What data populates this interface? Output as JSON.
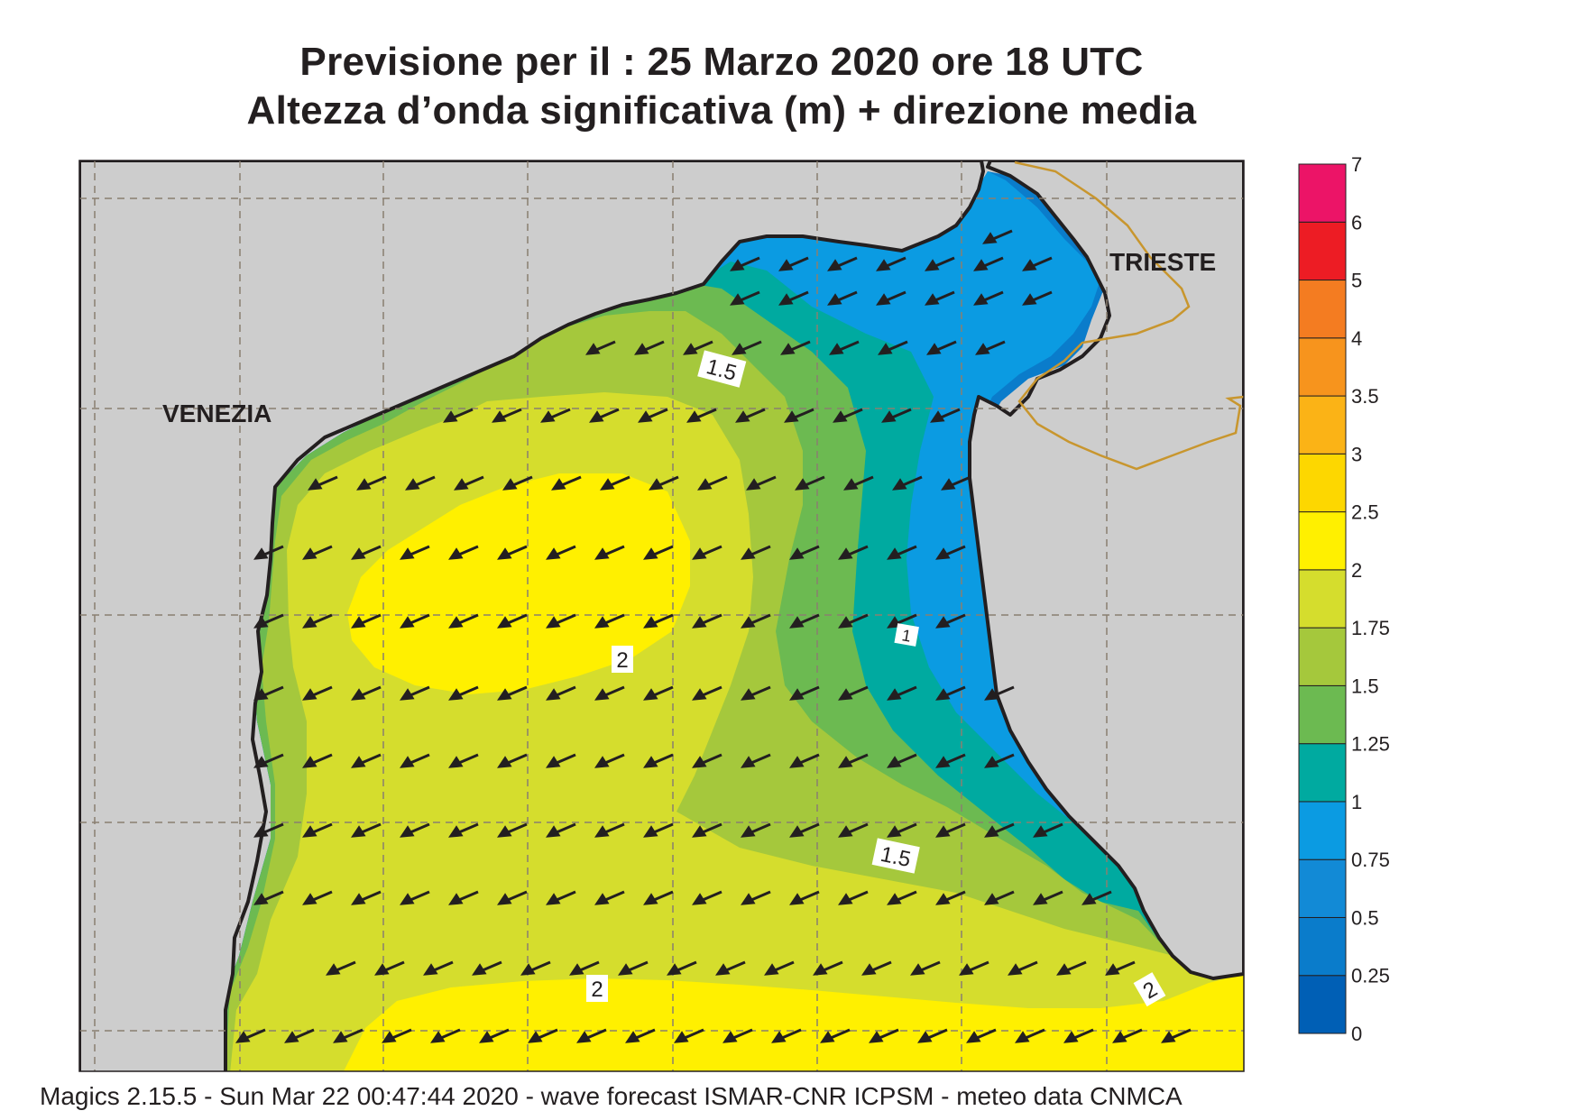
{
  "title": {
    "line1": "Previsione per il  :  25   Marzo   2020   ore 18 UTC",
    "line2": "Altezza d’onda significativa (m) + direzione media"
  },
  "places": {
    "venezia": "VENEZIA",
    "trieste": "TRIESTE"
  },
  "contour_labels": [
    {
      "id": "contour-label-1-5-north",
      "text": "1.5"
    },
    {
      "id": "contour-label-2-center",
      "text": "2"
    },
    {
      "id": "contour-label-1-east",
      "text": "1"
    },
    {
      "id": "contour-label-1-5-south",
      "text": "1.5"
    },
    {
      "id": "contour-label-2-south",
      "text": "2"
    },
    {
      "id": "contour-label-2-southeast",
      "text": "2"
    }
  ],
  "colorbar": {
    "ticks": [
      "0",
      "0.25",
      "0.5",
      "0.75",
      "1",
      "1.25",
      "1.5",
      "1.75",
      "2",
      "2.5",
      "3",
      "3.5",
      "4",
      "5",
      "6",
      "7"
    ],
    "colors": [
      "#005fb5",
      "#0a7ccb",
      "#128ad6",
      "#0b9be2",
      "#00aaa0",
      "#6cba51",
      "#a5c83c",
      "#d5dd2d",
      "#fff000",
      "#fdd700",
      "#fbb316",
      "#f7941d",
      "#f47c21",
      "#ed1c24",
      "#ec1467"
    ]
  },
  "footer": "Magics 2.15.5 - Sun Mar 22 00:47:44 2020 - wave forecast  ISMAR-CNR  ICPSM - meteo data   CNMCA",
  "style": {
    "land_color": "#cdcdcd",
    "coast_color": "#231f20",
    "border_color": "#c8962e",
    "arrow_color": "#231f20"
  },
  "wave_direction": "from north-east"
}
